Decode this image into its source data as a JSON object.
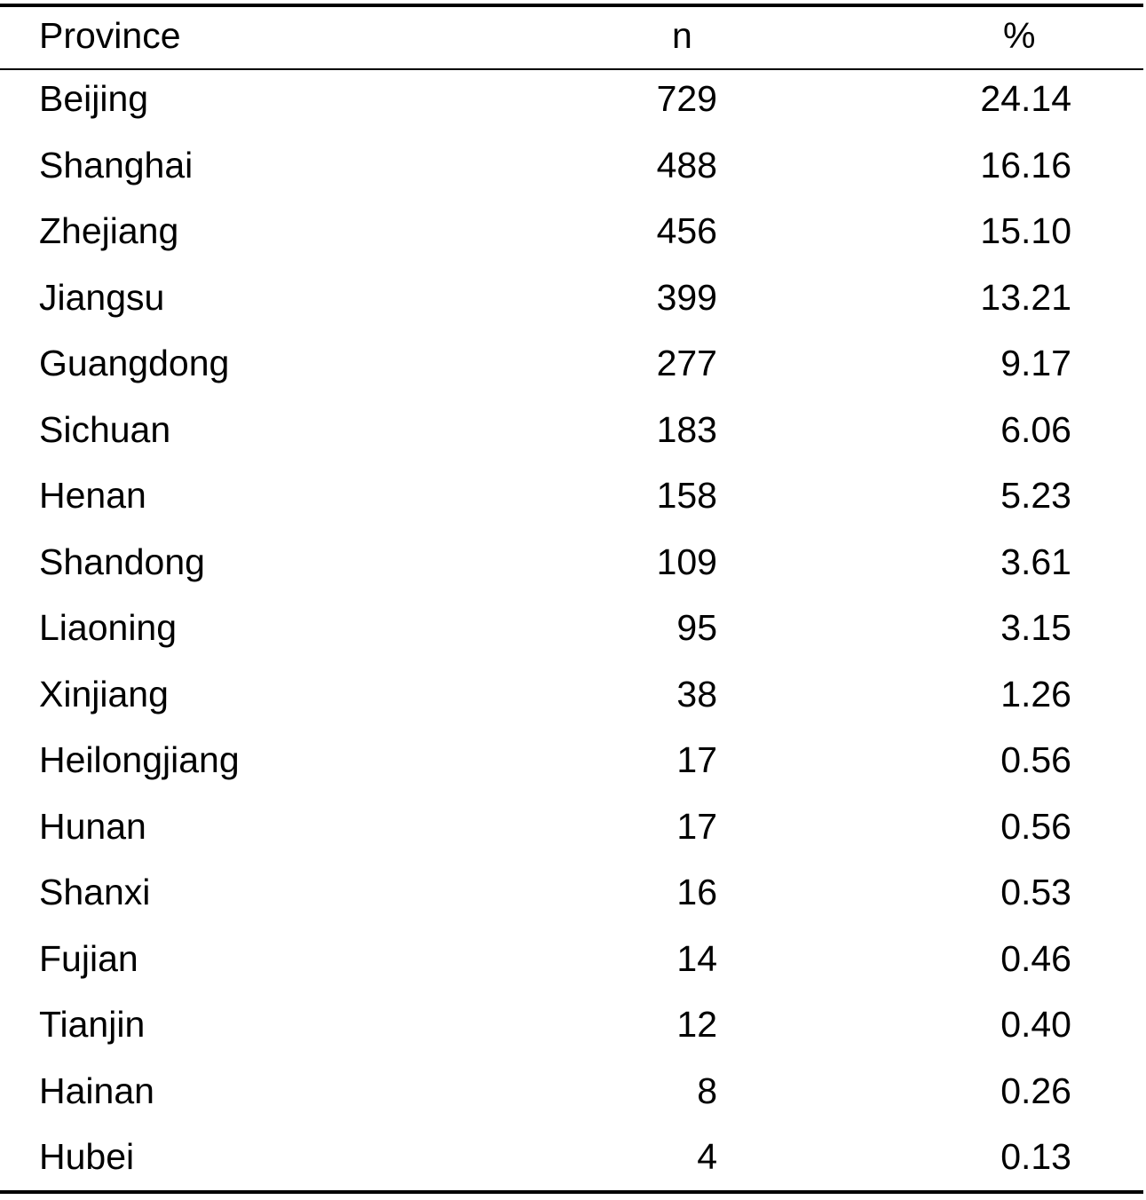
{
  "table": {
    "headers": [
      "Province",
      "n",
      "%"
    ],
    "rows": [
      [
        "Beijing",
        "729",
        "24.14"
      ],
      [
        "Shanghai",
        "488",
        "16.16"
      ],
      [
        "Zhejiang",
        "456",
        "15.10"
      ],
      [
        "Jiangsu",
        "399",
        "13.21"
      ],
      [
        "Guangdong",
        "277",
        "9.17"
      ],
      [
        "Sichuan",
        "183",
        "6.06"
      ],
      [
        "Henan",
        "158",
        "5.23"
      ],
      [
        "Shandong",
        "109",
        "3.61"
      ],
      [
        "Liaoning",
        "95",
        "3.15"
      ],
      [
        "Xinjiang",
        "38",
        "1.26"
      ],
      [
        "Heilongjiang",
        "17",
        "0.56"
      ],
      [
        "Hunan",
        "17",
        "0.56"
      ],
      [
        "Shanxi",
        "16",
        "0.53"
      ],
      [
        "Fujian",
        "14",
        "0.46"
      ],
      [
        "Tianjin",
        "12",
        "0.40"
      ],
      [
        "Hainan",
        "8",
        "0.26"
      ],
      [
        "Hubei",
        "4",
        "0.13"
      ]
    ]
  }
}
